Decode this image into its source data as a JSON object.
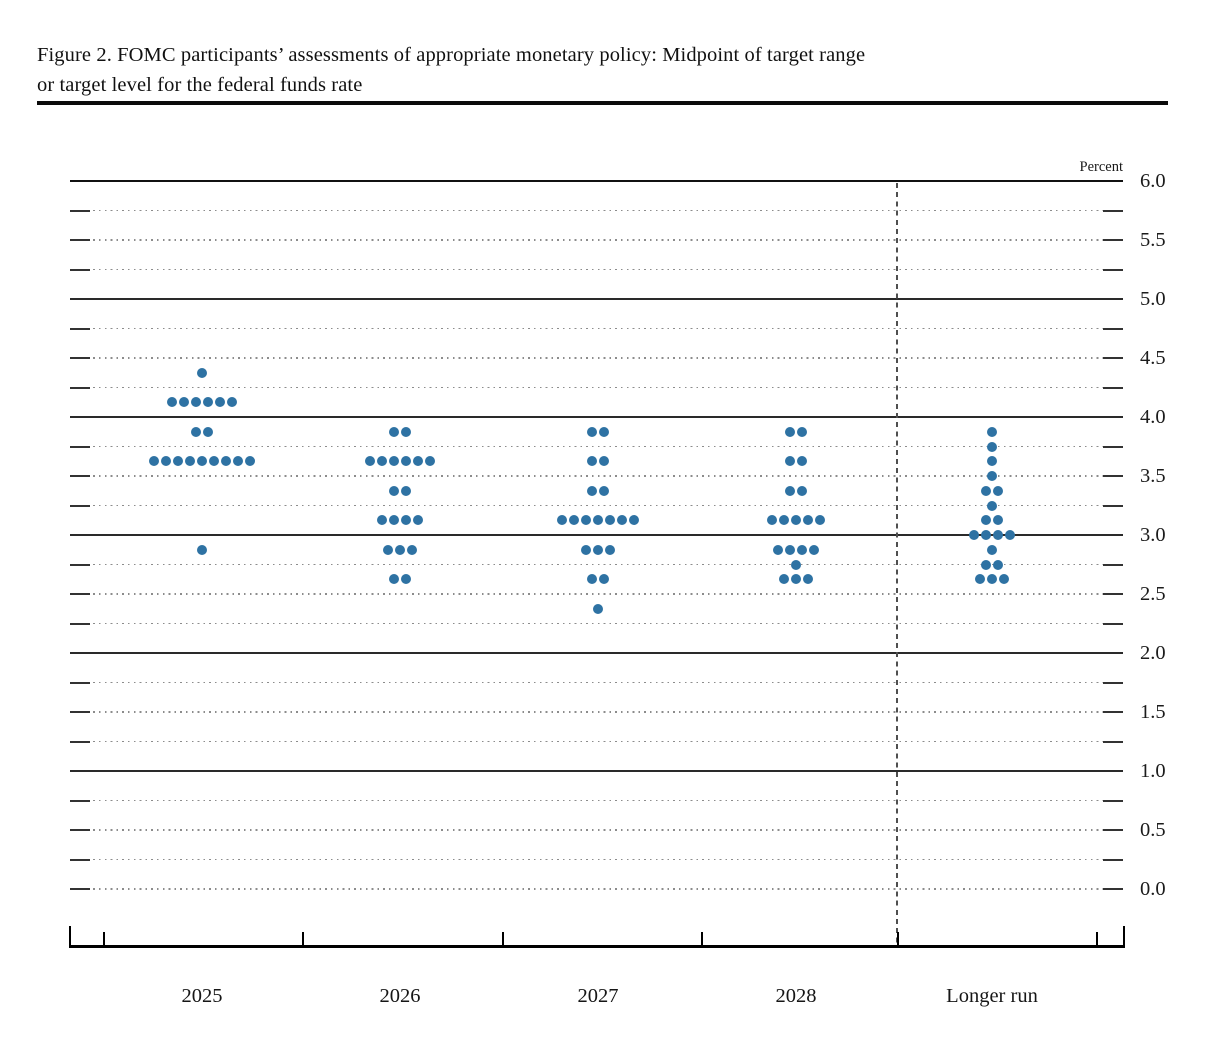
{
  "figure": {
    "title_line1": "Figure 2. FOMC participants’ assessments of appropriate monetary policy: Midpoint of target range",
    "title_line2": "or target level for the federal funds rate"
  },
  "chart_data": {
    "type": "scatter",
    "subtype": "fomc-dot-plot",
    "title": "FOMC participants’ assessments of appropriate monetary policy: Midpoint of target range or target level for the federal funds rate",
    "ylabel": "Percent",
    "xlabel": "",
    "categories": [
      "2025",
      "2026",
      "2027",
      "2028",
      "Longer run"
    ],
    "y_axis": {
      "min": 0.0,
      "max": 6.0,
      "grid_step": 0.25,
      "label_step": 0.5,
      "solid_gridline_values": [
        6.0,
        5.0,
        4.0,
        3.0,
        2.0,
        1.0
      ],
      "tick_values": [
        6.0,
        5.5,
        5.0,
        4.5,
        4.0,
        3.5,
        3.0,
        2.5,
        2.0,
        1.5,
        1.0,
        0.5,
        0.0
      ],
      "tick_labels": [
        "6.0",
        "5.5",
        "5.0",
        "4.5",
        "4.0",
        "3.5",
        "3.0",
        "2.5",
        "2.0",
        "1.5",
        "1.0",
        "0.5",
        "0.0"
      ]
    },
    "legend": null,
    "grid": "dotted quarter-point lines, solid whole-point lines",
    "separator": {
      "after_category": "2028",
      "before_category": "Longer run",
      "style": "dashed-vertical"
    },
    "series": [
      {
        "category": "2025",
        "dots": [
          {
            "rate": 4.375,
            "count": 1
          },
          {
            "rate": 4.125,
            "count": 6
          },
          {
            "rate": 3.875,
            "count": 2
          },
          {
            "rate": 3.625,
            "count": 9
          },
          {
            "rate": 2.875,
            "count": 1
          }
        ]
      },
      {
        "category": "2026",
        "dots": [
          {
            "rate": 3.875,
            "count": 2
          },
          {
            "rate": 3.625,
            "count": 6
          },
          {
            "rate": 3.375,
            "count": 2
          },
          {
            "rate": 3.125,
            "count": 4
          },
          {
            "rate": 2.875,
            "count": 3
          },
          {
            "rate": 2.625,
            "count": 2
          }
        ]
      },
      {
        "category": "2027",
        "dots": [
          {
            "rate": 3.875,
            "count": 2
          },
          {
            "rate": 3.625,
            "count": 2
          },
          {
            "rate": 3.375,
            "count": 2
          },
          {
            "rate": 3.125,
            "count": 7
          },
          {
            "rate": 2.875,
            "count": 3
          },
          {
            "rate": 2.625,
            "count": 2
          },
          {
            "rate": 2.375,
            "count": 1
          }
        ]
      },
      {
        "category": "2028",
        "dots": [
          {
            "rate": 3.875,
            "count": 2
          },
          {
            "rate": 3.625,
            "count": 2
          },
          {
            "rate": 3.375,
            "count": 2
          },
          {
            "rate": 3.125,
            "count": 5
          },
          {
            "rate": 2.875,
            "count": 4
          },
          {
            "rate": 2.75,
            "count": 1
          },
          {
            "rate": 2.625,
            "count": 3
          }
        ]
      },
      {
        "category": "Longer run",
        "dots": [
          {
            "rate": 3.875,
            "count": 1
          },
          {
            "rate": 3.75,
            "count": 1
          },
          {
            "rate": 3.625,
            "count": 1
          },
          {
            "rate": 3.5,
            "count": 1
          },
          {
            "rate": 3.375,
            "count": 2
          },
          {
            "rate": 3.25,
            "count": 1
          },
          {
            "rate": 3.125,
            "count": 2
          },
          {
            "rate": 3.0,
            "count": 4
          },
          {
            "rate": 2.875,
            "count": 1
          },
          {
            "rate": 2.75,
            "count": 2
          },
          {
            "rate": 2.625,
            "count": 3
          }
        ]
      }
    ],
    "participants_per_column": 19,
    "colors": {
      "dot": "#2e72a3",
      "grid_dotted": "#8c8c8c",
      "grid_solid": "#2a2a2a",
      "axis": "#000000",
      "text": "#111111"
    }
  }
}
